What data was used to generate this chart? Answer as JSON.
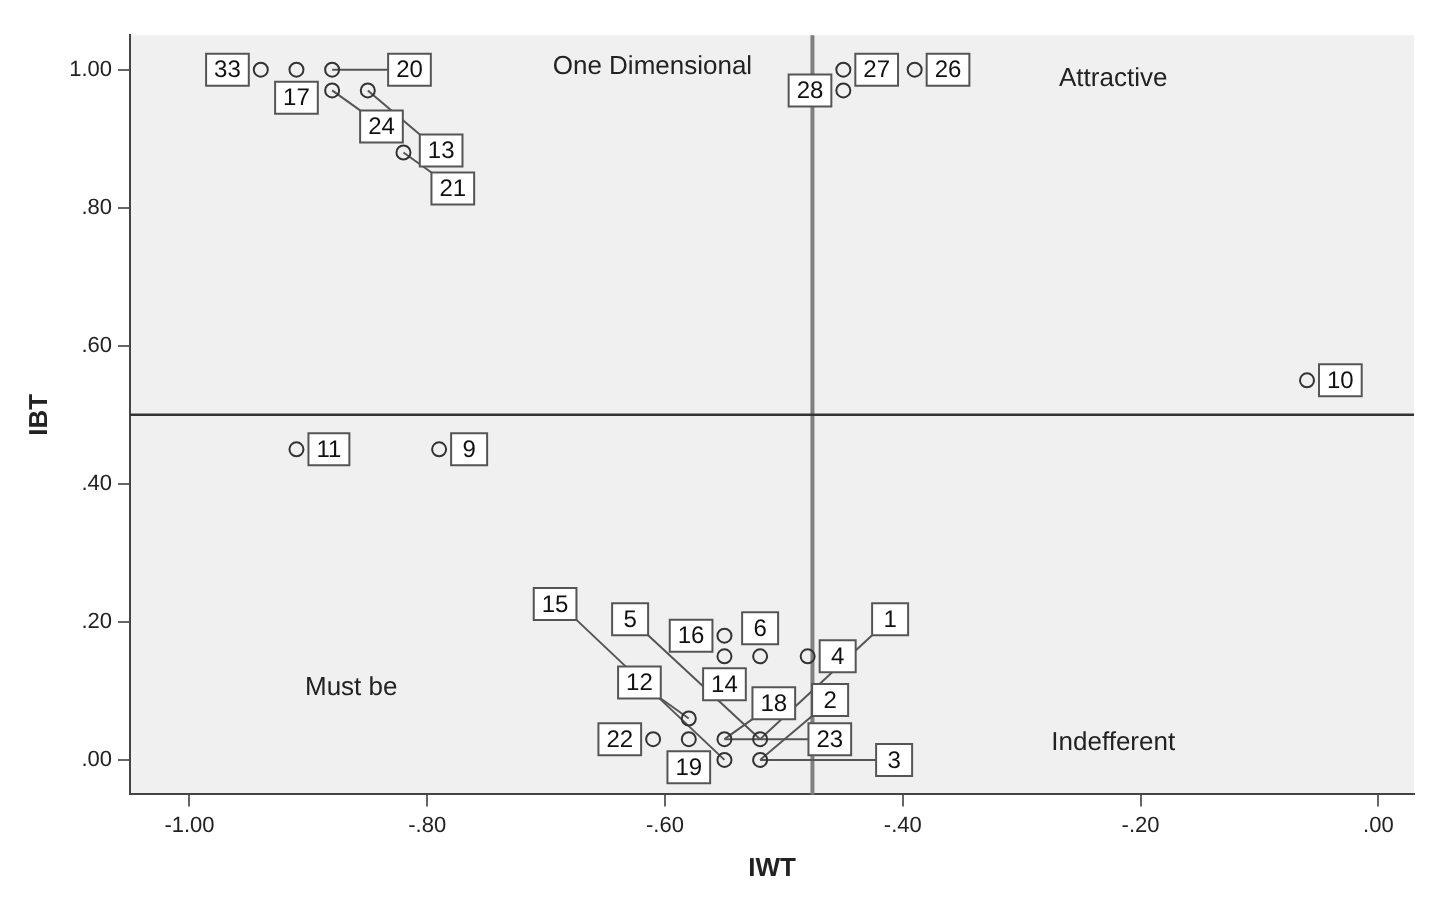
{
  "chart_data": {
    "type": "scatter",
    "xlabel": "IWT",
    "ylabel": "IBT",
    "xlim": [
      -1.05,
      0.03
    ],
    "ylim": [
      -0.05,
      1.05
    ],
    "xticks": [
      {
        "value": -1,
        "label": "-1.00"
      },
      {
        "value": -0.8,
        "label": "-.80"
      },
      {
        "value": -0.6,
        "label": "-.60"
      },
      {
        "value": -0.4,
        "label": "-.40"
      },
      {
        "value": -0.2,
        "label": "-.20"
      },
      {
        "value": 0,
        "label": ".00"
      }
    ],
    "yticks": [
      {
        "value": 0,
        "label": ".00"
      },
      {
        "value": 0.2,
        "label": ".20"
      },
      {
        "value": 0.4,
        "label": ".40"
      },
      {
        "value": 0.6,
        "label": ".60"
      },
      {
        "value": 0.8,
        "label": ".80"
      },
      {
        "value": 1,
        "label": "1.00"
      }
    ],
    "grid": false,
    "legend": false,
    "marker": "circle",
    "series": [
      {
        "color": "#333333",
        "x": [
          -0.94,
          -0.91,
          -0.88,
          -0.88,
          -0.85,
          -0.82,
          -0.45,
          -0.45,
          -0.39,
          -0.06,
          -0.91,
          -0.79,
          -0.55,
          -0.55,
          -0.52,
          -0.48,
          -0.58,
          -0.61,
          -0.58,
          -0.55,
          -0.52,
          -0.52,
          -0.55
        ],
        "values": [
          1.0,
          1.0,
          1.0,
          0.97,
          0.97,
          0.88,
          1.0,
          0.97,
          1.0,
          0.55,
          0.45,
          0.45,
          0.18,
          0.15,
          0.15,
          0.15,
          0.06,
          0.03,
          0.03,
          0.03,
          0.03,
          0.0,
          0.0
        ]
      }
    ],
    "ref_lines": [
      {
        "axis": "x",
        "value": -0.476,
        "color": "#808080"
      },
      {
        "axis": "y",
        "value": 0.5,
        "color": "#333333"
      }
    ],
    "annotations": [
      "One Dimensional",
      "Attractive",
      "Must be",
      "Indefferent",
      {
        "text": "33",
        "x": -0.94,
        "y": 1.0
      },
      {
        "text": "17",
        "x": -0.91,
        "y": 1.0
      },
      {
        "text": "20",
        "x": -0.88,
        "y": 1.0
      },
      {
        "text": "24",
        "x": -0.88,
        "y": 0.97
      },
      {
        "text": "13",
        "x": -0.85,
        "y": 0.97
      },
      {
        "text": "21",
        "x": -0.82,
        "y": 0.88
      },
      {
        "text": "27",
        "x": -0.45,
        "y": 1.0
      },
      {
        "text": "28",
        "x": -0.45,
        "y": 0.97
      },
      {
        "text": "26",
        "x": -0.39,
        "y": 1.0
      },
      {
        "text": "10",
        "x": -0.06,
        "y": 0.55
      },
      {
        "text": "11",
        "x": -0.91,
        "y": 0.45
      },
      {
        "text": "9",
        "x": -0.79,
        "y": 0.45
      },
      {
        "text": "16",
        "x": -0.55,
        "y": 0.18
      },
      {
        "text": "14",
        "x": -0.55,
        "y": 0.15
      },
      {
        "text": "6",
        "x": -0.52,
        "y": 0.15
      },
      {
        "text": "4",
        "x": -0.48,
        "y": 0.15
      },
      {
        "text": "12",
        "x": -0.58,
        "y": 0.06
      },
      {
        "text": "22",
        "x": -0.61,
        "y": 0.03
      },
      {
        "text": "19",
        "x": -0.58,
        "y": 0.03
      },
      {
        "text": "18",
        "x": -0.55,
        "y": 0.03
      },
      {
        "text": "23",
        "x": -0.55,
        "y": 0.03
      },
      {
        "text": "1",
        "x": -0.52,
        "y": 0.03
      },
      {
        "text": "5",
        "x": -0.52,
        "y": 0.03
      },
      {
        "text": "2",
        "x": -0.52,
        "y": 0.0
      },
      {
        "text": "3",
        "x": -0.52,
        "y": 0.0
      },
      {
        "text": "15",
        "x": -0.55,
        "y": 0.0
      }
    ]
  }
}
